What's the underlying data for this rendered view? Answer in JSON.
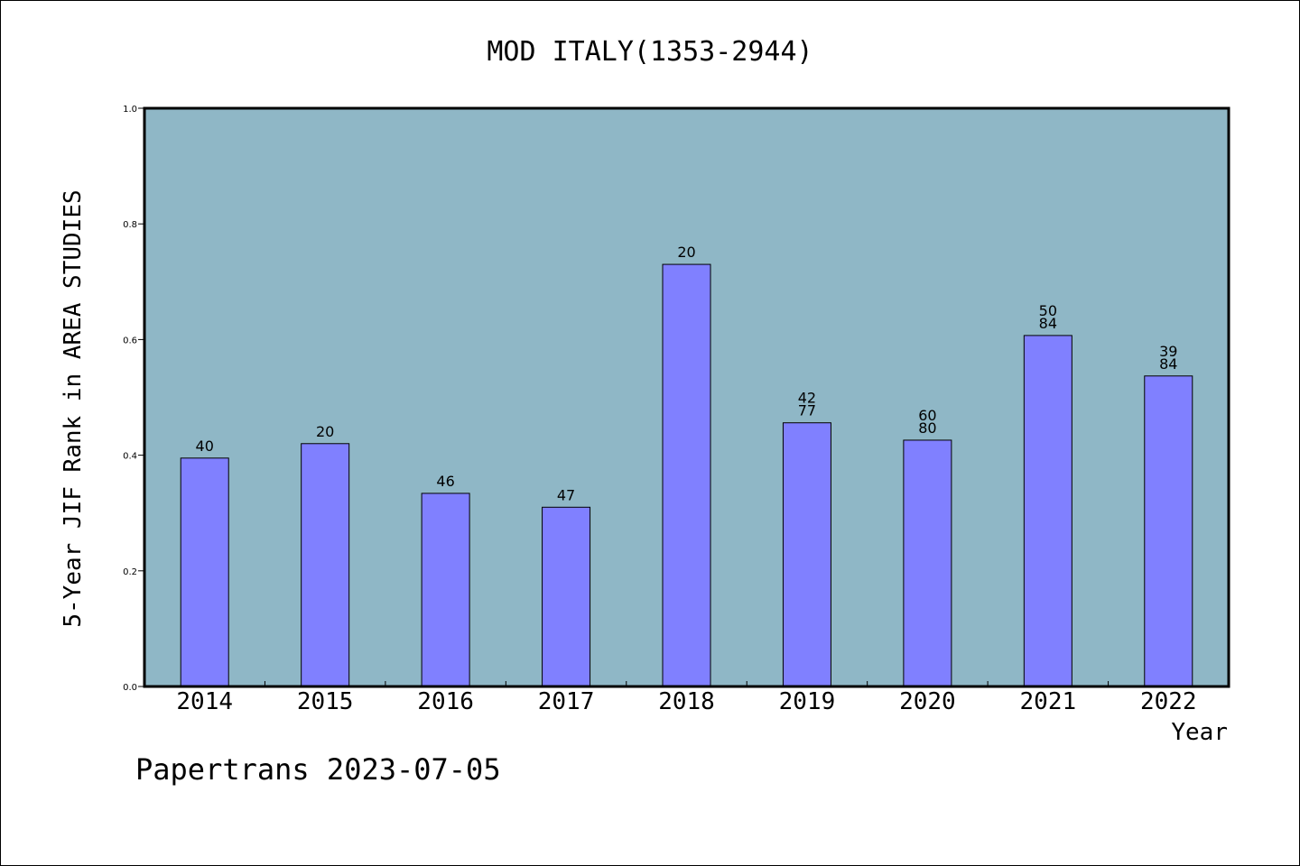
{
  "chart_data": {
    "type": "bar",
    "title": "MOD ITALY(1353-2944)",
    "xlabel": "Year",
    "ylabel": "5-Year JIF Rank in AREA STUDIES",
    "categories": [
      "2014",
      "2015",
      "2016",
      "2017",
      "2018",
      "2019",
      "2020",
      "2021",
      "2022"
    ],
    "values": [
      0.395,
      0.42,
      0.334,
      0.31,
      0.73,
      0.456,
      0.426,
      0.607,
      0.537
    ],
    "bar_labels": [
      [
        "40"
      ],
      [
        "20"
      ],
      [
        "46"
      ],
      [
        "47"
      ],
      [
        "20"
      ],
      [
        "42",
        "77"
      ],
      [
        "60",
        "80"
      ],
      [
        "50",
        "84"
      ],
      [
        "39",
        "84"
      ]
    ],
    "ylim": [
      0,
      1.0
    ],
    "yticks": [
      "0.0",
      "0.2",
      "0.4",
      "0.6",
      "0.8",
      "1.0"
    ],
    "grid": false,
    "colors": {
      "plot_background": "#8fb7c6",
      "bar_fill": "#8080ff",
      "bar_stroke": "#000000"
    }
  },
  "footer": {
    "text": "Papertrans 2023-07-05"
  }
}
